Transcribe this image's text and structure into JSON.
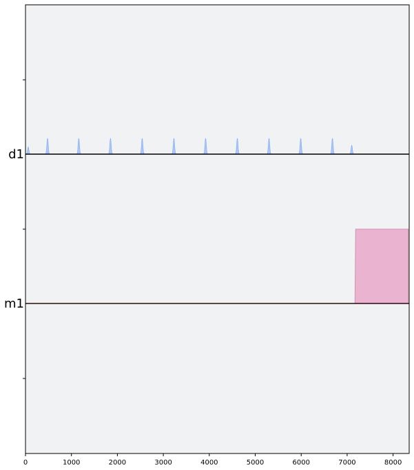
{
  "chart_data": {
    "type": "area",
    "title": "",
    "xlabel": "",
    "ylabel": "",
    "xlim": [
      0,
      8350
    ],
    "x_ticks": [
      0,
      1000,
      2000,
      3000,
      4000,
      5000,
      6000,
      7000,
      8000
    ],
    "x_tick_labels": [
      "0",
      "1000",
      "2000",
      "3000",
      "4000",
      "5000",
      "6000",
      "7000",
      "8000"
    ],
    "grid": false,
    "background_color": "#f1f2f4",
    "channels": [
      {
        "label": "d1",
        "baseline_color": "#000000",
        "fill_color": "#aec7f8",
        "edge_color": "#8fb0f0",
        "pulses": [
          {
            "center": 60,
            "width": 90,
            "amplitude": 0.45
          },
          {
            "center": 480,
            "width": 90,
            "amplitude": 1.0
          },
          {
            "center": 1160,
            "width": 90,
            "amplitude": 1.0
          },
          {
            "center": 1850,
            "width": 90,
            "amplitude": 1.0
          },
          {
            "center": 2540,
            "width": 90,
            "amplitude": 1.0
          },
          {
            "center": 3230,
            "width": 90,
            "amplitude": 1.0
          },
          {
            "center": 3920,
            "width": 90,
            "amplitude": 1.0
          },
          {
            "center": 4610,
            "width": 90,
            "amplitude": 1.0
          },
          {
            "center": 5300,
            "width": 90,
            "amplitude": 1.0
          },
          {
            "center": 5990,
            "width": 90,
            "amplitude": 1.0
          },
          {
            "center": 6680,
            "width": 90,
            "amplitude": 1.0
          },
          {
            "center": 7100,
            "width": 90,
            "amplitude": 0.55
          }
        ]
      },
      {
        "label": "m1",
        "baseline_color": "#2a0a0a",
        "fill_color": "#eab4d0",
        "edge_color": "#d58fb4",
        "blocks": [
          {
            "start": 7170,
            "end": 8330,
            "amplitude": 1.0
          }
        ]
      }
    ]
  }
}
